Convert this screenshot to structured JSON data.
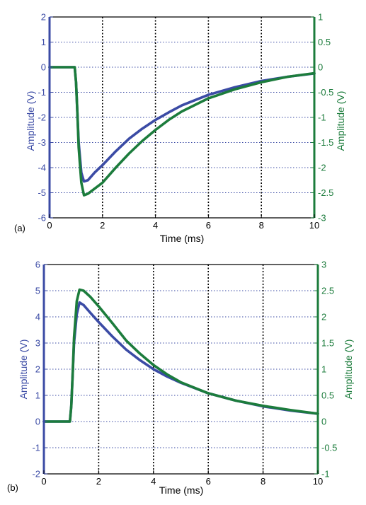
{
  "colors": {
    "left_axis": "#3b4ba5",
    "right_axis": "#1c7c3c",
    "grid": "#000000",
    "hgrid": "#3b4ba5"
  },
  "chart_data": [
    {
      "type": "line",
      "panel_label": "(a)",
      "xlabel": "Time (ms)",
      "ylabel_left": "Amplitude (V)",
      "ylabel_right": "Amplitude (V)",
      "xlim": [
        0,
        10
      ],
      "ylim_left": [
        -6,
        2
      ],
      "ylim_right": [
        -3,
        1
      ],
      "x_ticks": [
        "0",
        "2",
        "4",
        "6",
        "8",
        "10"
      ],
      "y_left_ticks": [
        "-6",
        "-5",
        "-4",
        "-3",
        "-2",
        "-1",
        "0",
        "1",
        "2"
      ],
      "y_right_ticks": [
        "-3",
        "-2.5",
        "-2",
        "-1.5",
        "-1",
        "-0.5",
        "0",
        "0.5",
        "1"
      ],
      "grid": true,
      "series": [
        {
          "axis": "left",
          "color": "#3b4ba5",
          "x": [
            0,
            0.95,
            1.0,
            1.05,
            1.1,
            1.2,
            1.3,
            1.45,
            1.7,
            2,
            2.5,
            3,
            3.5,
            4,
            4.5,
            5,
            6,
            7,
            8,
            9,
            10
          ],
          "y": [
            0,
            0,
            -0.6,
            -1.8,
            -3.0,
            -4.2,
            -4.55,
            -4.5,
            -4.2,
            -3.9,
            -3.35,
            -2.85,
            -2.45,
            -2.1,
            -1.8,
            -1.52,
            -1.1,
            -0.8,
            -0.55,
            -0.38,
            -0.25
          ]
        },
        {
          "axis": "right",
          "color": "#1c7c3c",
          "x": [
            0,
            0.95,
            1.0,
            1.05,
            1.1,
            1.2,
            1.3,
            1.45,
            1.7,
            2,
            2.5,
            3,
            3.5,
            4,
            4.5,
            5,
            6,
            7,
            8,
            9,
            10
          ],
          "y": [
            0,
            0,
            -0.3,
            -0.9,
            -1.6,
            -2.3,
            -2.55,
            -2.52,
            -2.42,
            -2.3,
            -2.0,
            -1.72,
            -1.47,
            -1.25,
            -1.05,
            -0.88,
            -0.62,
            -0.44,
            -0.3,
            -0.19,
            -0.12
          ]
        }
      ]
    },
    {
      "type": "line",
      "panel_label": "(b)",
      "xlabel": "Time (ms)",
      "ylabel_left": "Amplitude (V)",
      "ylabel_right": "Amplitude (V)",
      "xlim": [
        0,
        10
      ],
      "ylim_left": [
        -2,
        6
      ],
      "ylim_right": [
        -1,
        3
      ],
      "x_ticks": [
        "0",
        "2",
        "4",
        "6",
        "8",
        "10"
      ],
      "y_left_ticks": [
        "-2",
        "-1",
        "0",
        "1",
        "2",
        "3",
        "4",
        "5",
        "6"
      ],
      "y_right_ticks": [
        "-1",
        "-0.5",
        "0",
        "0.5",
        "1",
        "1.5",
        "2",
        "2.5",
        "3"
      ],
      "grid": true,
      "series": [
        {
          "axis": "left",
          "color": "#3b4ba5",
          "x": [
            0,
            0.95,
            1.0,
            1.05,
            1.1,
            1.2,
            1.3,
            1.45,
            1.7,
            2,
            2.5,
            3,
            3.5,
            4,
            4.5,
            5,
            6,
            7,
            8,
            9,
            10
          ],
          "y": [
            0,
            0,
            0.6,
            1.8,
            3.0,
            4.1,
            4.55,
            4.45,
            4.15,
            3.8,
            3.25,
            2.75,
            2.35,
            2.0,
            1.72,
            1.48,
            1.08,
            0.8,
            0.58,
            0.42,
            0.3
          ]
        },
        {
          "axis": "right",
          "color": "#1c7c3c",
          "x": [
            0,
            0.95,
            1.0,
            1.05,
            1.1,
            1.2,
            1.3,
            1.45,
            1.7,
            2,
            2.5,
            3,
            3.5,
            4,
            4.5,
            5,
            6,
            7,
            8,
            9,
            10
          ],
          "y": [
            0,
            0,
            0.3,
            0.9,
            1.6,
            2.3,
            2.52,
            2.5,
            2.38,
            2.2,
            1.88,
            1.55,
            1.3,
            1.08,
            0.9,
            0.75,
            0.54,
            0.4,
            0.3,
            0.22,
            0.15
          ]
        }
      ]
    }
  ]
}
